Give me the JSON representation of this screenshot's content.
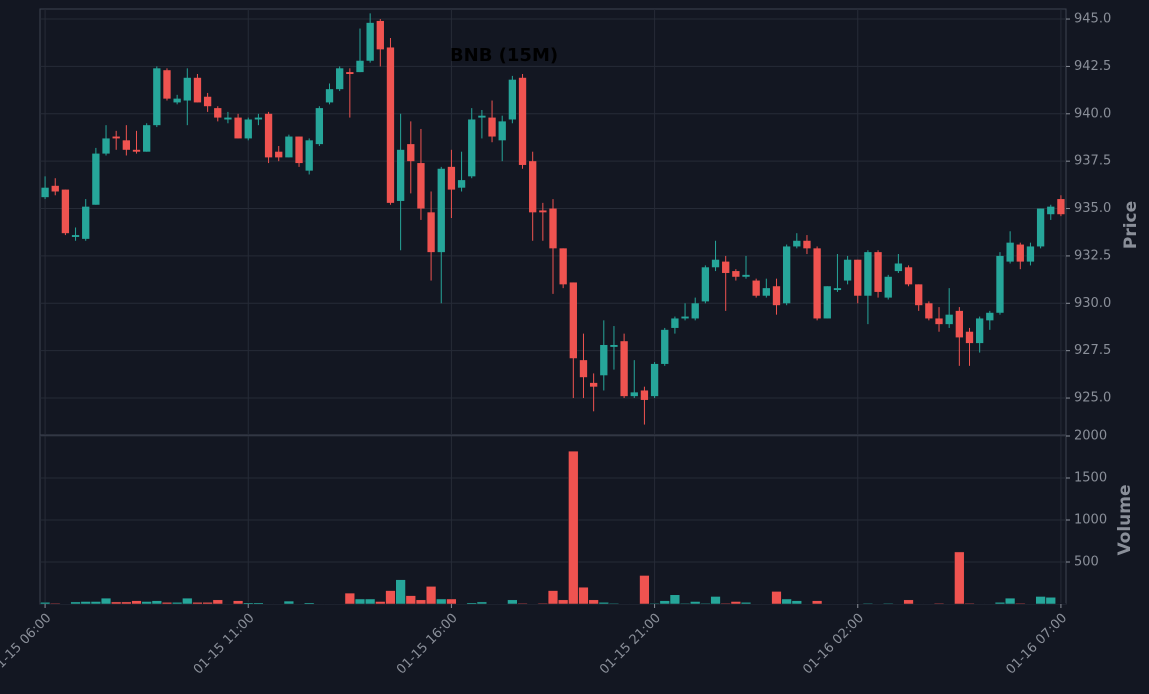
{
  "chart_data": {
    "type": "candlestick",
    "title": "BNB (15M)",
    "ylabel": "Price",
    "up_color": "#26a69a",
    "down_color": "#ef5350",
    "grid": true,
    "xlim": [
      -0.5,
      100.5
    ],
    "xticks": [
      {
        "value": 0,
        "label": "01-15 06:00"
      },
      {
        "value": 20,
        "label": "01-15 11:00"
      },
      {
        "value": 40,
        "label": "01-15 16:00"
      },
      {
        "value": 60,
        "label": "01-15 21:00"
      },
      {
        "value": 80,
        "label": "01-16 02:00"
      },
      {
        "value": 100,
        "label": "01-16 07:00"
      }
    ],
    "ylim": [
      923.05,
      945.53
    ],
    "yticks": [
      {
        "value": 925,
        "label": "925.0"
      },
      {
        "value": 927.5,
        "label": "927.5"
      },
      {
        "value": 930,
        "label": "930.0"
      },
      {
        "value": 932.5,
        "label": "932.5"
      },
      {
        "value": 935,
        "label": "935.0"
      },
      {
        "value": 937.5,
        "label": "937.5"
      },
      {
        "value": 940,
        "label": "940.0"
      },
      {
        "value": 942.5,
        "label": "942.5"
      },
      {
        "value": 945,
        "label": "945.0"
      }
    ],
    "open": [
      935.6,
      936.2,
      936.0,
      933.5,
      933.4,
      935.2,
      937.9,
      938.8,
      938.6,
      938.1,
      938.0,
      939.4,
      942.3,
      940.6,
      940.7,
      941.9,
      940.9,
      940.3,
      939.7,
      939.8,
      938.7,
      939.7,
      940.0,
      938.0,
      937.7,
      938.8,
      937.0,
      938.4,
      940.6,
      941.3,
      942.2,
      942.2,
      942.8,
      944.9,
      943.5,
      935.4,
      938.4,
      937.4,
      934.8,
      932.7,
      937.2,
      936.1,
      936.7,
      939.8,
      939.8,
      938.6,
      939.7,
      941.9,
      937.5,
      934.9,
      935.0,
      932.9,
      931.1,
      927.0,
      925.8,
      926.2,
      927.7,
      928.0,
      925.1,
      925.4,
      925.1,
      926.8,
      928.7,
      929.2,
      929.2,
      930.1,
      931.9,
      932.2,
      931.7,
      931.4,
      931.2,
      930.4,
      930.9,
      930.0,
      933.0,
      933.3,
      932.9,
      929.2,
      930.7,
      931.2,
      932.3,
      930.4,
      932.7,
      930.3,
      931.7,
      931.9,
      931.0,
      930.0,
      929.2,
      928.9,
      929.6,
      928.5,
      927.9,
      929.1,
      929.5,
      932.2,
      933.1,
      932.2,
      933.0,
      934.7,
      935.5
    ],
    "high": [
      936.7,
      936.6,
      936.0,
      934.0,
      935.5,
      938.2,
      939.4,
      939.1,
      939.4,
      939.1,
      939.5,
      942.5,
      942.4,
      941.0,
      942.4,
      942.1,
      941.1,
      940.4,
      940.1,
      940.0,
      939.8,
      940.0,
      940.1,
      938.3,
      938.9,
      938.8,
      938.7,
      940.4,
      941.6,
      942.5,
      942.4,
      944.5,
      945.3,
      945.0,
      944.0,
      940.0,
      939.6,
      939.2,
      935.9,
      937.2,
      938.1,
      938.0,
      940.3,
      940.2,
      940.7,
      939.9,
      942.0,
      942.1,
      938.0,
      935.3,
      935.5,
      932.9,
      931.1,
      928.4,
      926.3,
      929.1,
      928.8,
      928.4,
      927.0,
      925.6,
      926.9,
      928.7,
      929.3,
      930.0,
      930.3,
      932.0,
      933.3,
      932.5,
      931.8,
      932.5,
      931.3,
      931.3,
      931.3,
      933.1,
      933.7,
      933.6,
      933.0,
      930.9,
      932.6,
      932.5,
      932.3,
      932.8,
      932.8,
      931.5,
      932.6,
      932.0,
      931.0,
      930.1,
      929.8,
      930.8,
      929.8,
      928.7,
      929.3,
      929.6,
      932.7,
      933.8,
      933.2,
      933.2,
      935.0,
      935.2,
      935.7
    ],
    "low": [
      935.5,
      935.7,
      933.6,
      933.3,
      933.3,
      935.2,
      937.8,
      938.1,
      937.8,
      937.9,
      938.0,
      939.3,
      940.7,
      940.5,
      939.4,
      940.6,
      940.1,
      939.6,
      939.5,
      938.7,
      938.6,
      939.4,
      937.4,
      937.5,
      937.7,
      937.2,
      936.8,
      938.3,
      940.5,
      941.2,
      939.8,
      942.2,
      942.7,
      942.5,
      935.2,
      932.8,
      935.8,
      934.4,
      931.2,
      930.0,
      934.5,
      935.9,
      936.6,
      938.7,
      938.5,
      937.5,
      939.5,
      937.1,
      933.3,
      933.3,
      930.5,
      930.8,
      925.0,
      925.0,
      924.3,
      925.4,
      926.5,
      925.0,
      925.0,
      923.6,
      925.0,
      926.7,
      928.4,
      929.1,
      929.1,
      930.0,
      931.7,
      929.6,
      931.2,
      931.3,
      930.3,
      930.3,
      929.4,
      929.9,
      932.9,
      932.6,
      929.1,
      929.2,
      930.6,
      931.0,
      930.0,
      928.9,
      930.3,
      930.2,
      931.6,
      930.9,
      929.6,
      929.1,
      928.5,
      928.7,
      926.7,
      926.7,
      927.4,
      928.6,
      929.4,
      932.1,
      931.8,
      932.0,
      932.9,
      934.4,
      934.6
    ],
    "close": [
      936.1,
      935.9,
      933.7,
      933.6,
      935.1,
      937.9,
      938.7,
      938.7,
      938.1,
      938.0,
      939.4,
      942.4,
      940.8,
      940.8,
      941.9,
      940.6,
      940.4,
      939.8,
      939.8,
      938.7,
      939.7,
      939.8,
      937.7,
      937.7,
      938.8,
      937.4,
      938.6,
      940.3,
      941.3,
      942.4,
      942.1,
      942.8,
      944.8,
      943.4,
      935.3,
      938.1,
      937.5,
      935.0,
      932.7,
      937.1,
      936.0,
      936.5,
      939.7,
      939.9,
      938.8,
      939.6,
      941.8,
      937.3,
      934.8,
      934.8,
      932.9,
      931.0,
      927.1,
      926.1,
      925.6,
      927.8,
      927.8,
      925.1,
      925.3,
      924.9,
      926.8,
      928.6,
      929.2,
      929.3,
      930.0,
      931.9,
      932.3,
      931.6,
      931.4,
      931.5,
      930.4,
      930.8,
      929.9,
      933.0,
      933.3,
      932.9,
      929.2,
      930.9,
      930.8,
      932.3,
      930.4,
      932.7,
      930.6,
      931.4,
      932.1,
      931.0,
      929.9,
      929.2,
      928.9,
      929.4,
      928.2,
      927.9,
      929.2,
      929.5,
      932.5,
      933.2,
      932.2,
      933.0,
      935.0,
      935.1,
      934.7
    ],
    "volume": {
      "label": "Volume",
      "ylim": [
        0,
        2000
      ],
      "yticks": [
        500,
        1000,
        1500,
        2000
      ],
      "values": [
        20,
        10,
        5,
        25,
        30,
        30,
        70,
        25,
        25,
        40,
        30,
        40,
        20,
        20,
        70,
        20,
        20,
        50,
        5,
        40,
        15,
        15,
        5,
        5,
        35,
        5,
        15,
        5,
        5,
        5,
        130,
        60,
        60,
        30,
        160,
        290,
        100,
        50,
        210,
        60,
        60,
        5,
        15,
        25,
        5,
        5,
        50,
        10,
        5,
        10,
        160,
        50,
        1820,
        200,
        50,
        20,
        10,
        5,
        5,
        340,
        10,
        40,
        110,
        10,
        30,
        10,
        90,
        10,
        30,
        20,
        5,
        5,
        150,
        60,
        40,
        5,
        40,
        5,
        5,
        5,
        5,
        10,
        5,
        10,
        5,
        50,
        5,
        5,
        10,
        5,
        620,
        10,
        5,
        5,
        20,
        70,
        10,
        5,
        90,
        80,
        5
      ]
    }
  }
}
